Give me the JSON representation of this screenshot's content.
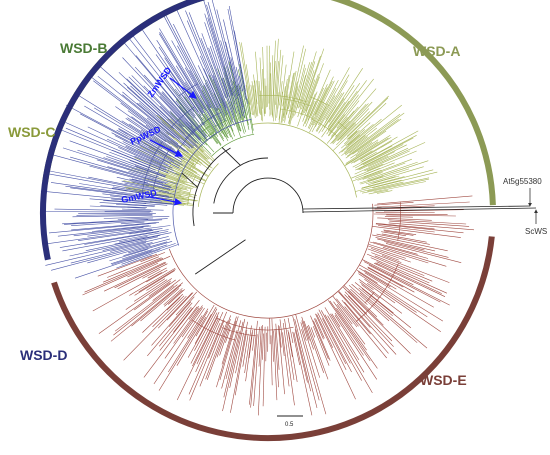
{
  "figure": {
    "colors": {
      "wsd_a": "#8c9a55",
      "wsd_b": "#4a7a35",
      "wsd_c": "#8a9a3a",
      "wsd_d": "#2b2f7a",
      "wsd_e": "#7a3f38",
      "branch_a": "#a8b65a",
      "branch_b": "#5e9a3a",
      "branch_d": "#4a55a8",
      "branch_e": "#a04a42",
      "annotation": "#1a1aff",
      "backbone": "#222222"
    },
    "clades": [
      {
        "id": "wsd_a",
        "label": "WSD-A"
      },
      {
        "id": "wsd_b",
        "label": "WSD-B"
      },
      {
        "id": "wsd_c",
        "label": "WSD-C"
      },
      {
        "id": "wsd_d",
        "label": "WSD-D"
      },
      {
        "id": "wsd_e",
        "label": "WSD-E"
      }
    ],
    "annotations": [
      {
        "id": "zmwsd",
        "label": "ZmWSD"
      },
      {
        "id": "ppwsd",
        "label": "PpWSD"
      },
      {
        "id": "gmwsd",
        "label": "GmWSD"
      }
    ],
    "outgroups": [
      {
        "id": "at5g",
        "label": "At5g55380"
      },
      {
        "id": "scws",
        "label": "ScWS"
      }
    ],
    "scale_bar": {
      "label": "0.5"
    }
  }
}
